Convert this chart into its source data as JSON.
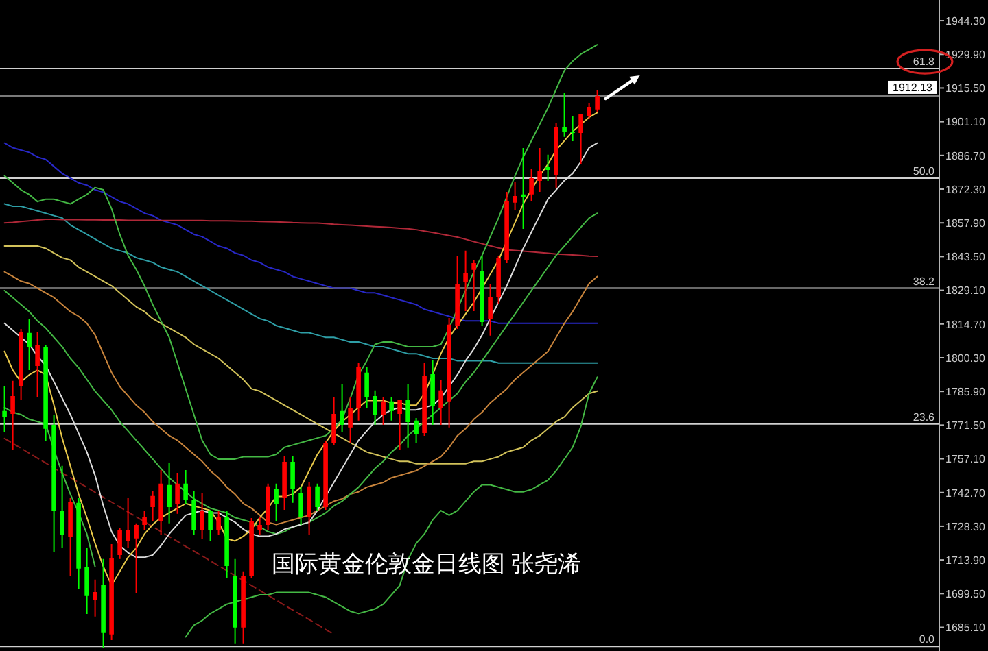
{
  "chart_data": {
    "type": "candlestick",
    "title": "国际黄金伦敦金日线图 张尧浠",
    "categories": [
      null,
      null,
      null,
      null,
      null,
      null,
      null,
      null,
      null,
      null,
      null,
      null,
      null,
      null,
      null,
      null,
      null,
      null,
      null,
      null,
      null,
      null,
      null,
      null,
      null,
      null,
      null,
      null,
      null,
      null,
      null,
      null,
      null,
      null,
      null,
      null,
      null,
      null,
      null,
      null,
      null,
      null,
      null,
      null,
      null,
      null,
      null,
      null,
      null,
      null,
      null,
      null,
      null,
      null,
      null,
      null,
      null,
      null,
      null,
      null,
      null,
      null,
      null,
      null,
      null,
      null,
      null,
      null,
      null,
      null,
      null,
      null,
      null
    ],
    "ohlc": [
      [
        1777.5,
        1788.0,
        1768.7,
        1775.1
      ],
      [
        1776.3,
        1790.4,
        1761.1,
        1783.9
      ],
      [
        1788.0,
        1812.6,
        1782.2,
        1811.4
      ],
      [
        1810.9,
        1816.7,
        1795.0,
        1805.0
      ],
      [
        1796.8,
        1811.4,
        1783.3,
        1805.6
      ],
      [
        1805.0,
        1805.6,
        1764.6,
        1769.9
      ],
      [
        1771.6,
        1775.7,
        1717.2,
        1734.8
      ],
      [
        1734.8,
        1754.1,
        1718.9,
        1724.8
      ],
      [
        1723.6,
        1740.6,
        1707.2,
        1738.8
      ],
      [
        1738.3,
        1740.6,
        1701.4,
        1710.2
      ],
      [
        1710.7,
        1718.9,
        1690.8,
        1698.5
      ],
      [
        1696.7,
        1705.5,
        1689.7,
        1700.2
      ],
      [
        1703.1,
        1714.3,
        1676.2,
        1682.7
      ],
      [
        1682.1,
        1720.7,
        1679.7,
        1714.8
      ],
      [
        1716.0,
        1727.7,
        1714.3,
        1726.6
      ],
      [
        1721.9,
        1740.6,
        1718.9,
        1726.6
      ],
      [
        1723.1,
        1729.5,
        1699.6,
        1728.9
      ],
      [
        1728.9,
        1734.8,
        1726.6,
        1732.4
      ],
      [
        1736.5,
        1743.5,
        1730.6,
        1741.2
      ],
      [
        1730.6,
        1752.3,
        1724.8,
        1746.5
      ],
      [
        1745.9,
        1755.2,
        1729.5,
        1736.5
      ],
      [
        1737.7,
        1751.1,
        1733.6,
        1746.5
      ],
      [
        1746.5,
        1752.3,
        1737.7,
        1739.4
      ],
      [
        1739.4,
        1743.5,
        1724.8,
        1726.6
      ],
      [
        1726.6,
        1742.4,
        1723.0,
        1734.8
      ],
      [
        1734.8,
        1735.3,
        1721.9,
        1726.6
      ],
      [
        1726.6,
        1734.8,
        1724.8,
        1732.4
      ],
      [
        1732.4,
        1734.8,
        1706.1,
        1711.3
      ],
      [
        1707.2,
        1714.3,
        1678.0,
        1685.0
      ],
      [
        1685.0,
        1709.0,
        1678.0,
        1707.2
      ],
      [
        1707.2,
        1731.8,
        1706.1,
        1730.6
      ],
      [
        1726.6,
        1732.4,
        1724.8,
        1728.9
      ],
      [
        1728.9,
        1746.5,
        1726.6,
        1745.3
      ],
      [
        1744.1,
        1746.5,
        1730.6,
        1737.7
      ],
      [
        1740.6,
        1758.2,
        1735.3,
        1755.8
      ],
      [
        1755.8,
        1758.2,
        1738.3,
        1744.1
      ],
      [
        1742.4,
        1745.3,
        1728.9,
        1732.4
      ],
      [
        1732.4,
        1747.0,
        1724.8,
        1745.3
      ],
      [
        1745.3,
        1746.5,
        1734.8,
        1736.5
      ],
      [
        1736.5,
        1764.6,
        1735.3,
        1764.0
      ],
      [
        1764.0,
        1783.3,
        1762.8,
        1776.3
      ],
      [
        1777.5,
        1789.2,
        1768.7,
        1771.6
      ],
      [
        1770.5,
        1783.3,
        1764.0,
        1778.7
      ],
      [
        1778.7,
        1798.0,
        1773.4,
        1796.2
      ],
      [
        1793.9,
        1796.2,
        1778.7,
        1783.3
      ],
      [
        1783.9,
        1786.3,
        1771.6,
        1775.7
      ],
      [
        1775.7,
        1783.3,
        1771.6,
        1781.6
      ],
      [
        1781.6,
        1783.3,
        1773.4,
        1777.5
      ],
      [
        1776.3,
        1782.2,
        1761.1,
        1782.2
      ],
      [
        1782.2,
        1789.2,
        1761.7,
        1772.8
      ],
      [
        1773.4,
        1774.5,
        1764.0,
        1767.5
      ],
      [
        1768.1,
        1798.0,
        1766.9,
        1792.7
      ],
      [
        1793.3,
        1799.1,
        1771.6,
        1779.8
      ],
      [
        1778.7,
        1790.9,
        1771.6,
        1786.3
      ],
      [
        1781.6,
        1817.3,
        1770.5,
        1814.4
      ],
      [
        1813.8,
        1843.6,
        1812.6,
        1831.9
      ],
      [
        1832.5,
        1846.0,
        1820.2,
        1836.6
      ],
      [
        1837.8,
        1841.9,
        1820.2,
        1840.7
      ],
      [
        1837.2,
        1843.6,
        1813.8,
        1815.5
      ],
      [
        1816.7,
        1831.9,
        1809.7,
        1826.1
      ],
      [
        1826.1,
        1843.6,
        1823.1,
        1843.0
      ],
      [
        1841.9,
        1871.1,
        1840.7,
        1867.0
      ],
      [
        1866.5,
        1875.2,
        1863.5,
        1869.4
      ],
      [
        1870.0,
        1889.9,
        1855.3,
        1869.1
      ],
      [
        1870.0,
        1881.1,
        1867.0,
        1877.0
      ],
      [
        1875.8,
        1889.9,
        1871.1,
        1879.9
      ],
      [
        1881.7,
        1887.0,
        1875.8,
        1880.5
      ],
      [
        1878.2,
        1900.4,
        1872.9,
        1898.7
      ],
      [
        1898.7,
        1913.3,
        1894.6,
        1896.9
      ],
      [
        1896.9,
        1903.3,
        1892.8,
        1896.3
      ],
      [
        1896.3,
        1904.5,
        1882.9,
        1904.5
      ],
      [
        1903.3,
        1909.2,
        1902.2,
        1907.4
      ],
      [
        1906.3,
        1914.5,
        1905.1,
        1912.13
      ]
    ],
    "colors": [
      "#00ff00",
      "#ff0000",
      "#ff0000",
      "#00ff00",
      "#ff0000",
      "#00ff00",
      "#00ff00",
      "#00ff00",
      "#ff0000",
      "#00ff00",
      "#00ff00",
      "#ff0000",
      "#00ff00",
      "#ff0000",
      "#ff0000",
      "#ff0000",
      "#ff0000",
      "#ff0000",
      "#ff0000",
      "#ff0000",
      "#00ff00",
      "#ff0000",
      "#00ff00",
      "#00ff00",
      "#ff0000",
      "#00ff00",
      "#ff0000",
      "#00ff00",
      "#00ff00",
      "#ff0000",
      "#ff0000",
      "#ff0000",
      "#ff0000",
      "#00ff00",
      "#ff0000",
      "#00ff00",
      "#00ff00",
      "#ff0000",
      "#00ff00",
      "#ff0000",
      "#ff0000",
      "#00ff00",
      "#ff0000",
      "#ff0000",
      "#00ff00",
      "#00ff00",
      "#ff0000",
      "#00ff00",
      "#ff0000",
      "#00ff00",
      "#00ff00",
      "#ff0000",
      "#00ff00",
      "#ff0000",
      "#ff0000",
      "#ff0000",
      "#ff0000",
      "#ff0000",
      "#00ff00",
      "#ff0000",
      "#ff0000",
      "#ff0000",
      "#ff0000",
      "#00ff00",
      "#ff0000",
      "#ff0000",
      "#00ff00",
      "#ff0000",
      "#00ff00",
      "#00ff00",
      "#ff0000",
      "#ff0000",
      "#ff0000"
    ],
    "series": [
      {
        "type": "line",
        "color": "#8b1a1a",
        "line_style": "dashed",
        "values": [
          1765.8,
          1763.7,
          1761.6,
          1759.5,
          1757.4,
          1755.3,
          1753.2,
          1751.1,
          1749.1,
          1747.0,
          1744.9,
          1742.8,
          1740.7,
          1738.6,
          1736.5,
          1734.4,
          1732.3,
          1730.2,
          1728.1,
          1726.0,
          1723.9,
          1721.8,
          1719.7,
          1717.7,
          1715.6,
          1713.5,
          1711.4,
          1709.3,
          1707.2,
          1705.1,
          1703.0,
          1700.9,
          1698.8,
          1696.7,
          1694.6,
          1692.5,
          1690.5,
          1688.4,
          1686.3,
          1684.2,
          1682.1,
          null,
          null,
          null,
          null,
          null,
          null,
          null,
          null,
          null,
          null,
          null,
          null,
          null,
          null,
          null,
          null,
          null,
          null,
          null,
          null,
          null,
          null,
          null,
          null,
          null,
          null,
          null,
          null,
          null,
          null,
          null,
          null
        ]
      },
      {
        "type": "line",
        "color": "#2828c8",
        "values": [
          1892,
          1890,
          1889,
          1888,
          1886,
          1885,
          1882,
          1879,
          1877,
          1875,
          1874,
          1872,
          1871,
          1869,
          1867,
          1866,
          1864,
          1862,
          1861,
          1859,
          1858,
          1857,
          1855,
          1853,
          1852,
          1850,
          1848,
          1847,
          1845,
          1844,
          1842,
          1841,
          1839,
          1838,
          1837,
          1835,
          1834,
          1833,
          1832,
          1831,
          1830,
          1830,
          1830,
          1829,
          1828,
          1828,
          1827,
          1826,
          1825,
          1824,
          1823,
          1821,
          1820,
          1819,
          1818,
          1817,
          1816,
          1816,
          1816,
          1816,
          1815,
          1815,
          1815,
          1815,
          1815,
          1815,
          1815,
          1815,
          1815,
          1815,
          1815,
          1815,
          1815
        ]
      },
      {
        "type": "line",
        "color": "#2e9ea6",
        "values": [
          1866,
          1865,
          1865,
          1864,
          1863,
          1862,
          1861,
          1860,
          1857,
          1855,
          1853,
          1851,
          1849,
          1847,
          1846,
          1845,
          1843,
          1842,
          1841,
          1839,
          1838,
          1837,
          1835,
          1833,
          1831,
          1829,
          1827,
          1825,
          1823,
          1821,
          1819,
          1817,
          1816,
          1814,
          1813,
          1812,
          1811,
          1811,
          1810,
          1809,
          1809,
          1808,
          1807,
          1807,
          1806,
          1805,
          1805,
          1804,
          1803,
          1802,
          1802,
          1801,
          1800,
          1800,
          1800,
          1799,
          1799,
          1799,
          1799,
          1799,
          1798,
          1798,
          1798,
          1798,
          1798,
          1798,
          1798,
          1798,
          1798,
          1798,
          1798,
          1798,
          1798
        ]
      },
      {
        "type": "line",
        "color": "#b02838",
        "values": [
          1857.9,
          1858.1,
          1858.5,
          1858.8,
          1859.1,
          1859.4,
          1859.4,
          1859.3,
          1859.3,
          1859.3,
          1859.2,
          1859.2,
          1859.1,
          1859.1,
          1859.1,
          1859.0,
          1859.0,
          1859.0,
          1859.0,
          1858.9,
          1858.9,
          1858.9,
          1858.9,
          1858.9,
          1858.9,
          1858.8,
          1858.8,
          1858.8,
          1858.7,
          1858.6,
          1858.6,
          1858.5,
          1858.4,
          1858.3,
          1858.2,
          1858.0,
          1857.9,
          1857.8,
          1857.8,
          1857.6,
          1857.3,
          1857.1,
          1856.9,
          1856.7,
          1856.5,
          1856.3,
          1856.1,
          1855.9,
          1855.6,
          1855.4,
          1855.0,
          1854.4,
          1853.8,
          1853.1,
          1852.5,
          1851.8,
          1850.9,
          1849.9,
          1849.0,
          1848.1,
          1847.2,
          1846.4,
          1846.1,
          1845.8,
          1845.5,
          1845.2,
          1844.9,
          1844.6,
          1844.4,
          1844.2,
          1844.0,
          1843.7,
          1843.6
        ]
      },
      {
        "type": "line",
        "color": "#d2c25a",
        "values": [
          1848,
          1848,
          1848,
          1848,
          1848,
          1847,
          1845,
          1843,
          1842,
          1839,
          1837,
          1835,
          1833,
          1831,
          1828,
          1825,
          1822,
          1820,
          1817,
          1815,
          1813,
          1811,
          1809,
          1806,
          1804,
          1802,
          1800,
          1797,
          1794,
          1791,
          1787,
          1786,
          1784,
          1782,
          1780,
          1778,
          1776,
          1774,
          1772,
          1770,
          1768,
          1766,
          1764,
          1762,
          1760,
          1759,
          1758,
          1757,
          1756,
          1756,
          1755,
          1755,
          1755,
          1755,
          1755,
          1755,
          1755,
          1756,
          1756,
          1757,
          1758,
          1760,
          1761,
          1762,
          1765,
          1767,
          1770,
          1773,
          1775,
          1779,
          1782,
          1785,
          1786
        ]
      },
      {
        "type": "line",
        "color": "#c8843c",
        "values": [
          1837,
          1835,
          1833,
          1832,
          1830,
          1828,
          1826,
          1823,
          1820,
          1818,
          1815,
          1810,
          1802,
          1794,
          1788,
          1784,
          1780,
          1777,
          1773,
          1770,
          1767,
          1765,
          1762,
          1759,
          1756,
          1752,
          1749,
          1745,
          1742,
          1738,
          1736,
          1733,
          1730,
          1729,
          1730,
          1731,
          1732,
          1733,
          1735,
          1737,
          1739,
          1740,
          1742,
          1743,
          1745,
          1746,
          1747,
          1749,
          1750,
          1751,
          1752,
          1754,
          1756,
          1758,
          1762,
          1767,
          1770,
          1774,
          1777,
          1781,
          1784,
          1787,
          1791,
          1794,
          1797,
          1800,
          1803,
          1809,
          1815,
          1820,
          1826,
          1832,
          1835
        ]
      },
      {
        "type": "line",
        "color": "#44b844",
        "values": [
          1878,
          1875,
          1872,
          1870,
          1867,
          1868,
          1868,
          1867,
          1866,
          1868,
          1870,
          1873,
          1872,
          1864,
          1853,
          1844,
          1838,
          1831,
          1823,
          1816,
          1809,
          1798,
          1787,
          1776,
          1765,
          1759,
          1757,
          1757,
          1757,
          1758,
          1758,
          1758,
          1758,
          1759,
          1762,
          1763,
          1764,
          1765,
          1766,
          1767,
          1770,
          1774,
          1783,
          1793,
          1799,
          1806,
          1807,
          1807,
          1806,
          1805,
          1805,
          1805,
          1805,
          1806,
          1813,
          1821,
          1829,
          1837,
          1844,
          1852,
          1860,
          1869,
          1878,
          1886,
          1893,
          1900,
          1907,
          1915,
          1923,
          1927,
          1930,
          1932,
          1934
        ]
      },
      {
        "type": "line",
        "color": "#44b844",
        "values": [
          1829,
          1826,
          1823,
          1820,
          1816,
          1813,
          1809,
          1805,
          1800,
          1796,
          1791,
          1786,
          1782,
          1778,
          1773,
          1769,
          1765,
          1761,
          1757,
          1753,
          1749,
          1746,
          1743,
          1740,
          1738,
          1736,
          1735,
          1734,
          1732,
          1731,
          1730,
          1728,
          1726,
          1725,
          1726,
          1728,
          1729,
          1730,
          1732,
          1734,
          1737,
          1739,
          1742,
          1745,
          1749,
          1753,
          1756,
          1760,
          1763,
          1767,
          1770,
          1773,
          1776,
          1779,
          1782,
          1785,
          1790,
          1794,
          1799,
          1804,
          1809,
          1814,
          1819,
          1824,
          1829,
          1834,
          1839,
          1844,
          1848,
          1852,
          1856,
          1860,
          1862
        ]
      },
      {
        "type": "line",
        "color": "#44b844",
        "values": [
          1779,
          1777,
          1776,
          1774,
          1773,
          1772,
          1761,
          1751,
          1742,
          1734,
          1725,
          1711,
          null,
          null,
          null,
          null,
          null,
          null,
          null,
          null,
          null,
          null,
          1681,
          1686,
          1688,
          1691,
          1693,
          1695,
          1696,
          1697,
          1698,
          1699,
          1699,
          1700,
          1700,
          1700,
          1700,
          1700,
          1699,
          1698,
          1696,
          1694,
          1692,
          1691,
          1692,
          1693,
          1695,
          1699,
          1703,
          1714,
          1721,
          1725,
          1731,
          1735,
          1733,
          1735,
          1739,
          1743,
          1746,
          1746,
          1745,
          1744,
          1743,
          1743,
          1744,
          1746,
          1748,
          1752,
          1757,
          1762,
          1771,
          1785,
          1792
        ]
      },
      {
        "type": "line",
        "color": "#dcdcdc",
        "values": [
          1815,
          1812,
          1809,
          1806,
          1801,
          1797,
          1790,
          1783,
          1776,
          1768,
          1760,
          1750,
          1737,
          1726,
          1720,
          1717,
          1715,
          1715,
          1716,
          1720,
          1725,
          1729,
          1733,
          1734,
          1735,
          1734,
          1734,
          1732,
          1730,
          1727,
          1725,
          1724,
          1724,
          1725,
          1727,
          1728,
          1729,
          1730,
          1735,
          1741,
          1747,
          1753,
          1759,
          1765,
          1769,
          1773,
          1776,
          1778,
          1779,
          1778,
          1778,
          1779,
          1780,
          1783,
          1788,
          1793,
          1799,
          1804,
          1810,
          1817,
          1824,
          1831,
          1839,
          1847,
          1854,
          1861,
          1868,
          1872,
          1876,
          1879,
          1884,
          1890,
          1892
        ]
      },
      {
        "type": "line",
        "color": "#e8c84a",
        "values": [
          1803,
          1795,
          1790,
          1793,
          1795,
          1793,
          1780,
          1766,
          1754,
          1742,
          1732,
          1721,
          1711,
          1703,
          1709,
          1715,
          1719,
          1725,
          1729,
          1732,
          1734,
          1736,
          1738,
          1737,
          1736,
          1735,
          1730,
          1723,
          1722,
          1724,
          1727,
          1732,
          1736,
          1741,
          1741,
          1742,
          1745,
          1752,
          1759,
          1764,
          1769,
          1773,
          1776,
          1779,
          1782,
          1782,
          1782,
          1781,
          1781,
          1780,
          1780,
          1785,
          1793,
          1802,
          1809,
          1814,
          1819,
          1824,
          1830,
          1836,
          1842,
          1850,
          1858,
          1866,
          1872,
          1878,
          1883,
          1889,
          1893,
          1897,
          1900,
          1903,
          1905
        ]
      }
    ],
    "ylim": [
      1675.0,
      1953.1
    ],
    "yticks": [
      {
        "value": 1944.3,
        "label": "1944.30"
      },
      {
        "value": 1929.9,
        "label": "1929.90"
      },
      {
        "value": 1915.5,
        "label": "1915.50"
      },
      {
        "value": 1901.1,
        "label": "1901.10"
      },
      {
        "value": 1886.7,
        "label": "1886.70"
      },
      {
        "value": 1872.3,
        "label": "1872.30"
      },
      {
        "value": 1857.9,
        "label": "1857.90"
      },
      {
        "value": 1843.5,
        "label": "1843.50"
      },
      {
        "value": 1829.1,
        "label": "1829.10"
      },
      {
        "value": 1814.7,
        "label": "1814.70"
      },
      {
        "value": 1800.3,
        "label": "1800.30"
      },
      {
        "value": 1785.9,
        "label": "1785.90"
      },
      {
        "value": 1771.5,
        "label": "1771.50"
      },
      {
        "value": 1757.1,
        "label": "1757.10"
      },
      {
        "value": 1742.7,
        "label": "1742.70"
      },
      {
        "value": 1728.3,
        "label": "1728.30"
      },
      {
        "value": 1713.9,
        "label": "1713.90"
      },
      {
        "value": 1699.5,
        "label": "1699.50"
      },
      {
        "value": 1685.1,
        "label": "1685.10"
      }
    ],
    "ref_lines": [
      {
        "axis": "y",
        "value": 1912.13,
        "label": "1912.13",
        "color": "#7a7a7a"
      },
      {
        "axis": "y",
        "value": 1923.8,
        "color": "#d0d0d0"
      },
      {
        "axis": "y",
        "value": 1877.0,
        "color": "#d0d0d0"
      },
      {
        "axis": "y",
        "value": 1830.0,
        "color": "#d0d0d0"
      },
      {
        "axis": "y",
        "value": 1772.0,
        "color": "#d0d0d0"
      },
      {
        "axis": "y",
        "value": 1677.0,
        "color": "#d0d0d0"
      }
    ],
    "annotations": [
      {
        "text": "61.8",
        "y": 1923.8
      },
      {
        "text": "50.0",
        "y": 1877.0
      },
      {
        "text": "38.2",
        "y": 1830.0
      },
      {
        "text": "23.6",
        "y": 1772.0
      },
      {
        "text": "0.0",
        "y": 1677.0
      }
    ],
    "tick_labels": "y"
  }
}
